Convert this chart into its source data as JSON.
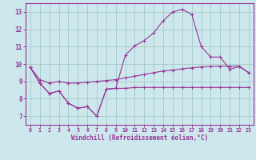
{
  "xlabel": "Windchill (Refroidissement éolien,°C)",
  "xlim": [
    -0.5,
    23.5
  ],
  "ylim": [
    6.5,
    13.5
  ],
  "yticks": [
    7,
    8,
    9,
    10,
    11,
    12,
    13
  ],
  "xticks": [
    0,
    1,
    2,
    3,
    4,
    5,
    6,
    7,
    8,
    9,
    10,
    11,
    12,
    13,
    14,
    15,
    16,
    17,
    18,
    19,
    20,
    21,
    22,
    23
  ],
  "bg_color": "#cce8ec",
  "grid_color": "#aacccc",
  "line_color": "#993399",
  "line1_y": [
    9.8,
    8.9,
    8.3,
    8.45,
    7.75,
    7.45,
    7.55,
    7.0,
    8.55,
    8.6,
    8.6,
    8.65,
    8.65,
    8.65,
    8.65,
    8.65,
    8.65,
    8.65,
    8.65,
    8.65,
    8.65,
    8.65,
    8.65,
    8.65
  ],
  "line2_y": [
    9.8,
    8.9,
    8.3,
    8.45,
    7.75,
    7.45,
    7.55,
    7.0,
    8.55,
    8.6,
    10.5,
    11.05,
    11.35,
    11.8,
    12.5,
    13.0,
    13.15,
    12.85,
    11.0,
    10.4,
    10.4,
    9.7,
    9.85,
    9.5
  ],
  "line3_y": [
    9.8,
    9.1,
    8.9,
    9.0,
    8.9,
    8.9,
    8.95,
    9.0,
    9.05,
    9.1,
    9.2,
    9.3,
    9.4,
    9.5,
    9.6,
    9.65,
    9.72,
    9.78,
    9.83,
    9.86,
    9.88,
    9.88,
    9.88,
    9.5
  ]
}
